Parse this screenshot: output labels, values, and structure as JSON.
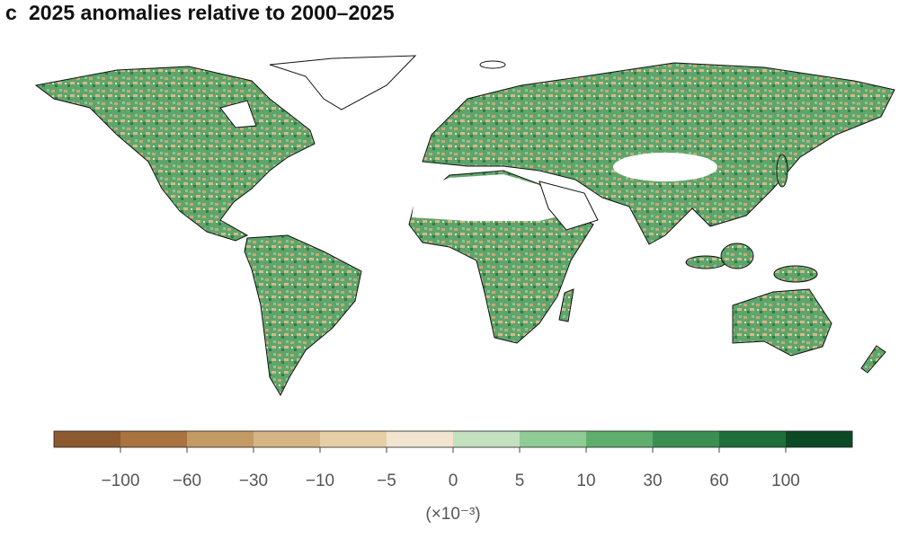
{
  "panel_label": "c",
  "title": "2025 anomalies relative to 2000–2025",
  "colorbar": {
    "colors": [
      "#8c5a2e",
      "#a8733f",
      "#c49a64",
      "#d6b584",
      "#e6cfa5",
      "#f1e5cf",
      "#c3e1bf",
      "#8fcb94",
      "#5fae6e",
      "#3b8f52",
      "#1f6f3a",
      "#0b4a25"
    ],
    "ticks": [
      {
        "value": -100,
        "label": "−100"
      },
      {
        "value": -60,
        "label": "−60"
      },
      {
        "value": -30,
        "label": "−30"
      },
      {
        "value": -10,
        "label": "−10"
      },
      {
        "value": -5,
        "label": "−5"
      },
      0,
      5,
      10,
      30,
      60,
      100
    ],
    "unit": "(×10⁻³)"
  }
}
